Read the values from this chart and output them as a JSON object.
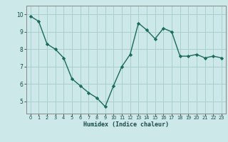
{
  "x": [
    0,
    1,
    2,
    3,
    4,
    5,
    6,
    7,
    8,
    9,
    10,
    11,
    12,
    13,
    14,
    15,
    16,
    17,
    18,
    19,
    20,
    21,
    22,
    23
  ],
  "y": [
    9.9,
    9.6,
    8.3,
    8.0,
    7.5,
    6.3,
    5.9,
    5.5,
    5.2,
    4.7,
    5.9,
    7.0,
    7.7,
    9.5,
    9.1,
    8.6,
    9.2,
    9.0,
    7.6,
    7.6,
    7.7,
    7.5,
    7.6,
    7.5
  ],
  "xlabel": "Humidex (Indice chaleur)",
  "xlim": [
    -0.5,
    23.5
  ],
  "ylim": [
    4.3,
    10.5
  ],
  "yticks": [
    5,
    6,
    7,
    8,
    9,
    10
  ],
  "xticks": [
    0,
    1,
    2,
    3,
    4,
    5,
    6,
    7,
    8,
    9,
    10,
    11,
    12,
    13,
    14,
    15,
    16,
    17,
    18,
    19,
    20,
    21,
    22,
    23
  ],
  "line_color": "#1a6b5a",
  "marker_color": "#1a6b5a",
  "bg_color": "#cce8e8",
  "grid_color": "#aacfcf",
  "axes_bg": "#cce8e8"
}
